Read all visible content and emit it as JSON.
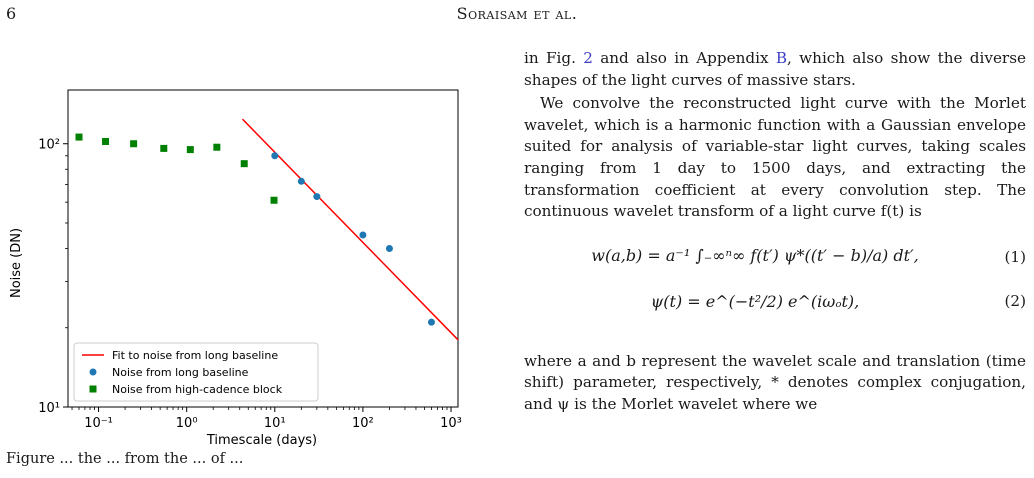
{
  "header": {
    "page_number": "6",
    "authors": "Soraisam et al."
  },
  "figure": {
    "caption_fragment": "Figure ... the ... from the ... of ...",
    "chart_data": {
      "type": "scatter",
      "title": "",
      "xlabel": "Timescale (days)",
      "ylabel": "Noise (DN)",
      "xscale": "log",
      "yscale": "log",
      "xlim": [
        0.045,
        1200
      ],
      "ylim": [
        10,
        160
      ],
      "x_ticks": [
        "10⁻¹",
        "10⁰",
        "10¹",
        "10²",
        "10³"
      ],
      "y_ticks": [
        "10¹",
        "10²"
      ],
      "grid": false,
      "legend_position": "lower-left",
      "series": [
        {
          "name": "Fit to noise from long baseline",
          "kind": "line",
          "color": "#ff0000",
          "x": [
            4.3,
            1200
          ],
          "y": [
            124,
            18
          ]
        },
        {
          "name": "Noise from long baseline",
          "kind": "circle",
          "color": "#1f77b4",
          "x": [
            10,
            20,
            30,
            100,
            200,
            600
          ],
          "y": [
            90,
            72,
            63,
            45,
            40,
            21
          ]
        },
        {
          "name": "Noise from high-cadence block",
          "kind": "square",
          "color": "#008000",
          "x": [
            0.06,
            0.12,
            0.25,
            0.55,
            1.1,
            2.2,
            4.5,
            9.8
          ],
          "y": [
            106,
            102,
            100,
            96,
            95,
            97,
            84,
            61
          ]
        }
      ]
    }
  },
  "body_text": {
    "p1": "in Fig. 2 and also in Appendix B, which also show the diverse shapes of the light curves of massive stars.",
    "p1_prefix": "in Fig. ",
    "p1_ref1": "2",
    "p1_mid": " and also in Appendix ",
    "p1_ref2": "B",
    "p1_suffix": ", which also show the diverse shapes of the light curves of massive stars.",
    "p2": "We convolve the reconstructed light curve with the Morlet wavelet, which is a harmonic function with a Gaussian envelope suited for analysis of variable-star light curves, taking scales ranging from 1 day to 1500 days, and extracting the transformation coefficient at every convolution step. The continuous wavelet transform of a light curve f(t) is",
    "eq1": "w(a,b) = a⁻¹ ∫₋∞ⁿ∞ f(t′) ψ*((t′ − b)/a) dt′,",
    "eq1_num": "(1)",
    "eq2": "ψ(t) = e^(−t²/2) e^(iωₒt),",
    "eq2_num": "(2)",
    "p3": "where a and b represent the wavelet scale and translation (time shift) parameter, respectively, * denotes complex conjugation, and ψ is the Morlet wavelet where we"
  }
}
